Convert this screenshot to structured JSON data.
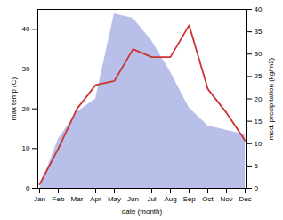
{
  "chart_data": {
    "type": "line",
    "x_label": "date (month)",
    "y_label": "max temp (C)",
    "y2_label": "med. precipitation (kg/m2)",
    "categories": [
      "Jan",
      "Feb",
      "Mar",
      "Apr",
      "May",
      "Jun",
      "Jul",
      "Aug",
      "Sep",
      "Oct",
      "Nov",
      "Dec"
    ],
    "series": [
      {
        "type": "area",
        "axis": "y2",
        "color": "#b8bfe8",
        "values": [
          0,
          11,
          17,
          20,
          39,
          38,
          33,
          26,
          18,
          14,
          13,
          12
        ]
      },
      {
        "type": "line",
        "color": "#cc3333",
        "values": [
          1,
          10,
          20,
          26,
          27,
          35,
          33,
          33,
          41,
          25,
          19,
          12
        ]
      }
    ],
    "ylim": [
      0,
      45
    ],
    "yticks": [
      0,
      10,
      20,
      30,
      40
    ],
    "y2lim": [
      0,
      40
    ],
    "y2ticks": [
      0,
      5,
      10,
      15,
      20,
      25,
      30,
      35,
      40
    ],
    "grid": false
  }
}
